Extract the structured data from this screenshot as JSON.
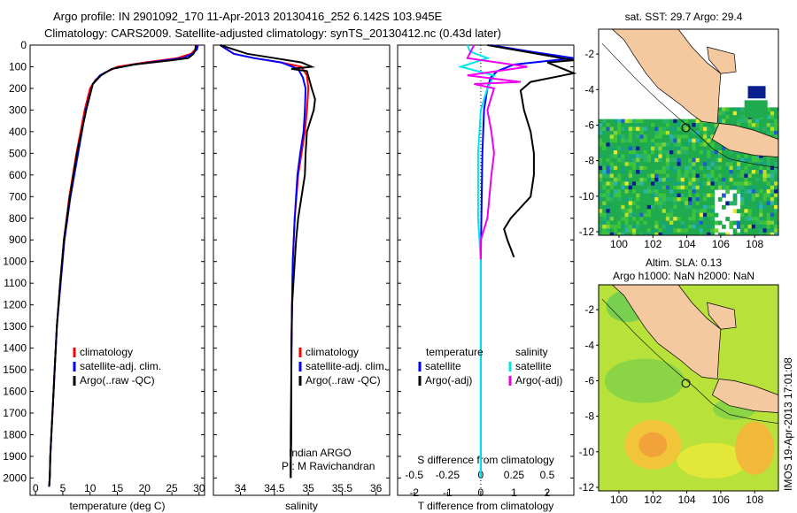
{
  "title_line1": "Argo profile: IN 2901092_170 11-Apr-2013 20130416_252 6.142S 103.945E",
  "title_line2": "Climatology: CARS2009. Satellite-adjusted climatology: synTS_20130412.nc (0.43d later)",
  "sst_title": "sat. SST: 29.7 Argo: 29.4",
  "sla_title1": "Altim. SLA: 0.13",
  "sla_title2": "Argo h1000: NaN h2000: NaN",
  "watermark": "IMOS 19-Apr-2013 17:01:08",
  "colors": {
    "climatology": "#ff0000",
    "satellite": "#0000ff",
    "argo": "#000000",
    "cyan": "#00e5ee",
    "magenta": "#ee00ee",
    "land": "#f5c9a0"
  },
  "chart_data": [
    {
      "type": "line",
      "xlabel": "temperature (deg C)",
      "ylabel": "",
      "xlim": [
        -1,
        31
      ],
      "ylim": [
        2080,
        0
      ],
      "xticks": [
        "0",
        "5",
        "10",
        "15",
        "20",
        "25",
        "30"
      ],
      "yticks": [
        "0",
        "100",
        "200",
        "300",
        "400",
        "500",
        "600",
        "700",
        "800",
        "900",
        "1000",
        "1100",
        "1200",
        "1300",
        "1400",
        "1500",
        "1600",
        "1700",
        "1800",
        "1900",
        "2000"
      ],
      "legend": [
        "climatology",
        "satellite-adj. clim.",
        "Argo(..raw -QC)"
      ],
      "series": [
        {
          "name": "climatology",
          "x": [
            29.6,
            29.3,
            28.5,
            26,
            20,
            15,
            12.5,
            11,
            10,
            9,
            7.5,
            6.2,
            5.2,
            4.5,
            3.9,
            3.5,
            3.2,
            2.9,
            2.7,
            2.6,
            2.5
          ],
          "y": [
            0,
            20,
            40,
            60,
            80,
            100,
            130,
            160,
            200,
            300,
            500,
            700,
            900,
            1100,
            1300,
            1500,
            1650,
            1800,
            1900,
            2000,
            2040
          ]
        },
        {
          "name": "satellite-adj. clim.",
          "x": [
            29.8,
            29.6,
            28.8,
            27,
            24,
            18,
            14,
            11.8,
            10.5,
            9.2,
            7.8,
            6.4,
            5.3,
            4.6,
            3.9,
            3.5,
            3.2,
            2.9,
            2.7,
            2.6,
            2.5
          ],
          "y": [
            0,
            20,
            40,
            60,
            70,
            90,
            110,
            140,
            180,
            300,
            500,
            700,
            900,
            1100,
            1300,
            1500,
            1650,
            1800,
            1900,
            2000,
            2040
          ]
        },
        {
          "name": "Argo(..raw -QC)",
          "x": [
            29.4,
            29.3,
            29,
            28,
            25,
            18,
            14,
            12,
            10.5,
            9.3,
            7.6,
            6.3,
            5.2,
            4.5,
            3.9,
            3.5,
            3.2,
            2.9,
            2.7,
            2.6,
            2.5
          ],
          "y": [
            0,
            20,
            40,
            60,
            70,
            90,
            110,
            140,
            180,
            300,
            500,
            700,
            900,
            1100,
            1300,
            1500,
            1650,
            1800,
            1900,
            2000,
            2040
          ]
        }
      ]
    },
    {
      "type": "line",
      "xlabel": "salinity",
      "xlim": [
        33.6,
        36.2
      ],
      "ylim": [
        2080,
        0
      ],
      "xticks": [
        "34",
        "34.5",
        "35",
        "35.5",
        "36"
      ],
      "legend": [
        "climatology",
        "satellite-adj. clim.",
        "Argo(..raw -QC)"
      ],
      "annotation": [
        "Indian ARGO",
        "PI: M Ravichandran"
      ],
      "series": [
        {
          "name": "climatology",
          "x": [
            33.7,
            33.9,
            34.2,
            34.6,
            34.9,
            34.98,
            35.0,
            34.98,
            34.95,
            34.9,
            34.85,
            34.8,
            34.77,
            34.76,
            34.75,
            34.75,
            34.75,
            34.74,
            34.74
          ],
          "y": [
            0,
            40,
            60,
            80,
            100,
            140,
            200,
            300,
            400,
            500,
            600,
            800,
            1000,
            1200,
            1400,
            1600,
            1800,
            1950,
            2000
          ]
        },
        {
          "name": "satellite-adj. clim.",
          "x": [
            33.7,
            33.9,
            34.2,
            34.6,
            34.85,
            34.92,
            34.96,
            34.95,
            34.93,
            34.88,
            34.84,
            34.8,
            34.77,
            34.76,
            34.75,
            34.75,
            34.75,
            34.74,
            34.74
          ],
          "y": [
            0,
            40,
            60,
            80,
            110,
            150,
            200,
            300,
            400,
            500,
            600,
            800,
            1000,
            1200,
            1400,
            1600,
            1800,
            1950,
            2000
          ]
        },
        {
          "name": "Argo(..raw -QC)",
          "x": [
            33.7,
            34.1,
            34.5,
            34.9,
            35.05,
            34.75,
            34.98,
            35.05,
            35.1,
            35.08,
            34.98,
            34.96,
            34.95,
            34.9,
            34.85,
            34.82,
            34.8,
            34.78,
            34.76,
            34.75,
            34.74,
            34.74
          ],
          "y": [
            0,
            40,
            60,
            80,
            100,
            110,
            120,
            200,
            250,
            300,
            400,
            500,
            600,
            700,
            800,
            900,
            1000,
            1100,
            1200,
            1500,
            1800,
            2000
          ]
        }
      ]
    },
    {
      "type": "line",
      "xlabel": "T difference from climatology",
      "xlabel2": "S difference from climatology",
      "xlim": [
        -2.5,
        2.8
      ],
      "ylim": [
        2080,
        0
      ],
      "xticks": [
        "-2",
        "-1",
        "0",
        "1",
        "2"
      ],
      "xticks2": [
        "-0.5",
        "-0.25",
        "0",
        "0.25",
        "0.5"
      ],
      "legend_titles": [
        "temperature",
        "salinity"
      ],
      "legend": [
        "satellite",
        "Argo(-adj)",
        "satellite",
        "Argo(-adj)"
      ],
      "series": [
        {
          "name": "T satellite",
          "x": [
            0.3,
            1.5,
            2.8,
            1.0,
            0.5,
            0.3,
            0.2,
            0.1,
            0.05,
            0.02,
            0,
            0,
            0,
            0,
            0
          ],
          "y": [
            0,
            30,
            60,
            90,
            120,
            150,
            200,
            300,
            500,
            800,
            1000,
            1200,
            1500,
            1800,
            2000
          ]
        },
        {
          "name": "T Argo(-adj)",
          "x": [
            0.2,
            2.8,
            2.0,
            2.8,
            1.5,
            1.2,
            1.3,
            1.5,
            1.6,
            1.6,
            1.5,
            0.9,
            0.7,
            0.8,
            0.9,
            1.0
          ],
          "y": [
            0,
            70,
            80,
            130,
            170,
            210,
            300,
            400,
            500,
            600,
            700,
            800,
            850,
            900,
            940,
            980
          ]
        },
        {
          "name": "S satellite",
          "x": [
            -0.1,
            -0.08,
            0.05,
            -0.15,
            0.1,
            0.05,
            0.0,
            -0.02,
            -0.02,
            0.0,
            0.0,
            0.0,
            0.0
          ],
          "y": [
            0,
            30,
            60,
            100,
            140,
            200,
            300,
            500,
            800,
            1000,
            1300,
            1700,
            2000
          ]
        },
        {
          "name": "S Argo(-adj)",
          "x": [
            -0.05,
            -0.1,
            0.35,
            -0.1,
            0.3,
            -0.05,
            0.1,
            0.05,
            0.08,
            0.1,
            0.08,
            0.05,
            0.0,
            0.0
          ],
          "y": [
            0,
            60,
            100,
            140,
            170,
            180,
            200,
            300,
            400,
            500,
            600,
            800,
            900,
            990
          ]
        }
      ]
    },
    {
      "type": "heatmap",
      "title": "sat. SST: 29.7 Argo: 29.4",
      "xticks": [
        "100",
        "102",
        "104",
        "106",
        "108"
      ],
      "yticks": [
        "-2",
        "-4",
        "-6",
        "-8",
        "-10",
        "-12"
      ],
      "xlim": [
        98.8,
        109.4
      ],
      "ylim": [
        -12.2,
        -0.6
      ]
    },
    {
      "type": "heatmap",
      "title": "Altim. SLA: 0.13",
      "xticks": [
        "100",
        "102",
        "104",
        "106",
        "108"
      ],
      "yticks": [
        "-2",
        "-4",
        "-6",
        "-8",
        "-10",
        "-12"
      ],
      "xlim": [
        98.8,
        109.4
      ],
      "ylim": [
        -12.2,
        -0.6
      ]
    }
  ]
}
